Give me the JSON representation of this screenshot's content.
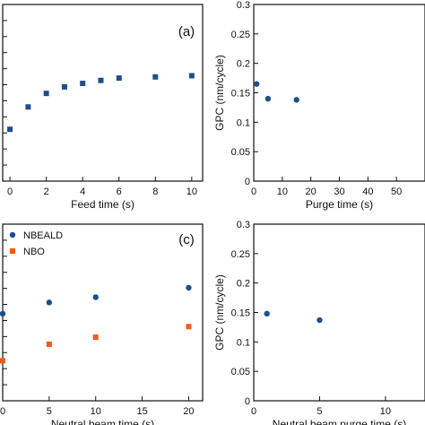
{
  "chart_data": [
    {
      "panel": "(a)",
      "type": "scatter",
      "xlabel": "Feed time (s)",
      "ylabel": "",
      "xlim": [
        -0.4,
        10.6
      ],
      "ylim": [
        0.0,
        0.3
      ],
      "xticks": [
        0,
        2,
        4,
        6,
        8,
        10
      ],
      "series": [
        {
          "name": "",
          "color": "#1f4e8c",
          "marker": "square",
          "x": [
            0,
            1,
            2,
            3,
            4,
            5,
            6,
            8,
            10
          ],
          "y": [
            0.088,
            0.126,
            0.149,
            0.16,
            0.166,
            0.171,
            0.175,
            0.177,
            0.179
          ]
        }
      ]
    },
    {
      "panel": "(b)",
      "type": "scatter",
      "xlabel": "Purge time (s)",
      "ylabel": "GPC (nm/cycle)",
      "xlim": [
        0,
        60
      ],
      "ylim": [
        0,
        0.3
      ],
      "xticks": [
        0,
        10,
        20,
        30,
        40,
        50
      ],
      "yticks": [
        0,
        0.05,
        0.1,
        0.15,
        0.2,
        0.25,
        0.3
      ],
      "ytick_labels": [
        "0",
        "0.05",
        "0.1",
        "0.15",
        "0.2",
        "0.25",
        "0.3"
      ],
      "series": [
        {
          "name": "",
          "color": "#1f4e8c",
          "marker": "circle",
          "x": [
            1,
            5,
            15
          ],
          "y": [
            0.165,
            0.14,
            0.138
          ]
        }
      ]
    },
    {
      "panel": "(c)",
      "type": "scatter",
      "xlabel": "Neutral beam time (s)",
      "ylabel": "",
      "xlim": [
        0,
        21.5
      ],
      "ylim": [
        0.0,
        0.3
      ],
      "xticks": [
        0,
        5,
        10,
        15,
        20
      ],
      "series": [
        {
          "name": "NBEALD",
          "color": "#1f4e8c",
          "marker": "circle",
          "x": [
            0,
            5,
            10,
            20
          ],
          "y": [
            0.148,
            0.167,
            0.176,
            0.192
          ]
        },
        {
          "name": "NBO",
          "color": "#f05a1e",
          "marker": "square",
          "x": [
            0,
            5,
            10,
            20
          ],
          "y": [
            0.068,
            0.096,
            0.108,
            0.126
          ]
        }
      ]
    },
    {
      "panel": "",
      "type": "scatter",
      "xlabel": "Neutral beam purge time (s)",
      "ylabel": "GPC (nm/cycle)",
      "xlim": [
        0,
        13
      ],
      "ylim": [
        0,
        0.3
      ],
      "xticks": [
        0,
        5,
        10
      ],
      "yticks": [
        0,
        0.05,
        0.1,
        0.15,
        0.2,
        0.25,
        0.3
      ],
      "ytick_labels": [
        "0",
        "0.05",
        "0.1",
        "0.15",
        "0.2",
        "0.25",
        "0.3"
      ],
      "series": [
        {
          "name": "",
          "color": "#1f4e8c",
          "marker": "circle",
          "x": [
            1,
            5
          ],
          "y": [
            0.148,
            0.137
          ]
        }
      ]
    }
  ]
}
